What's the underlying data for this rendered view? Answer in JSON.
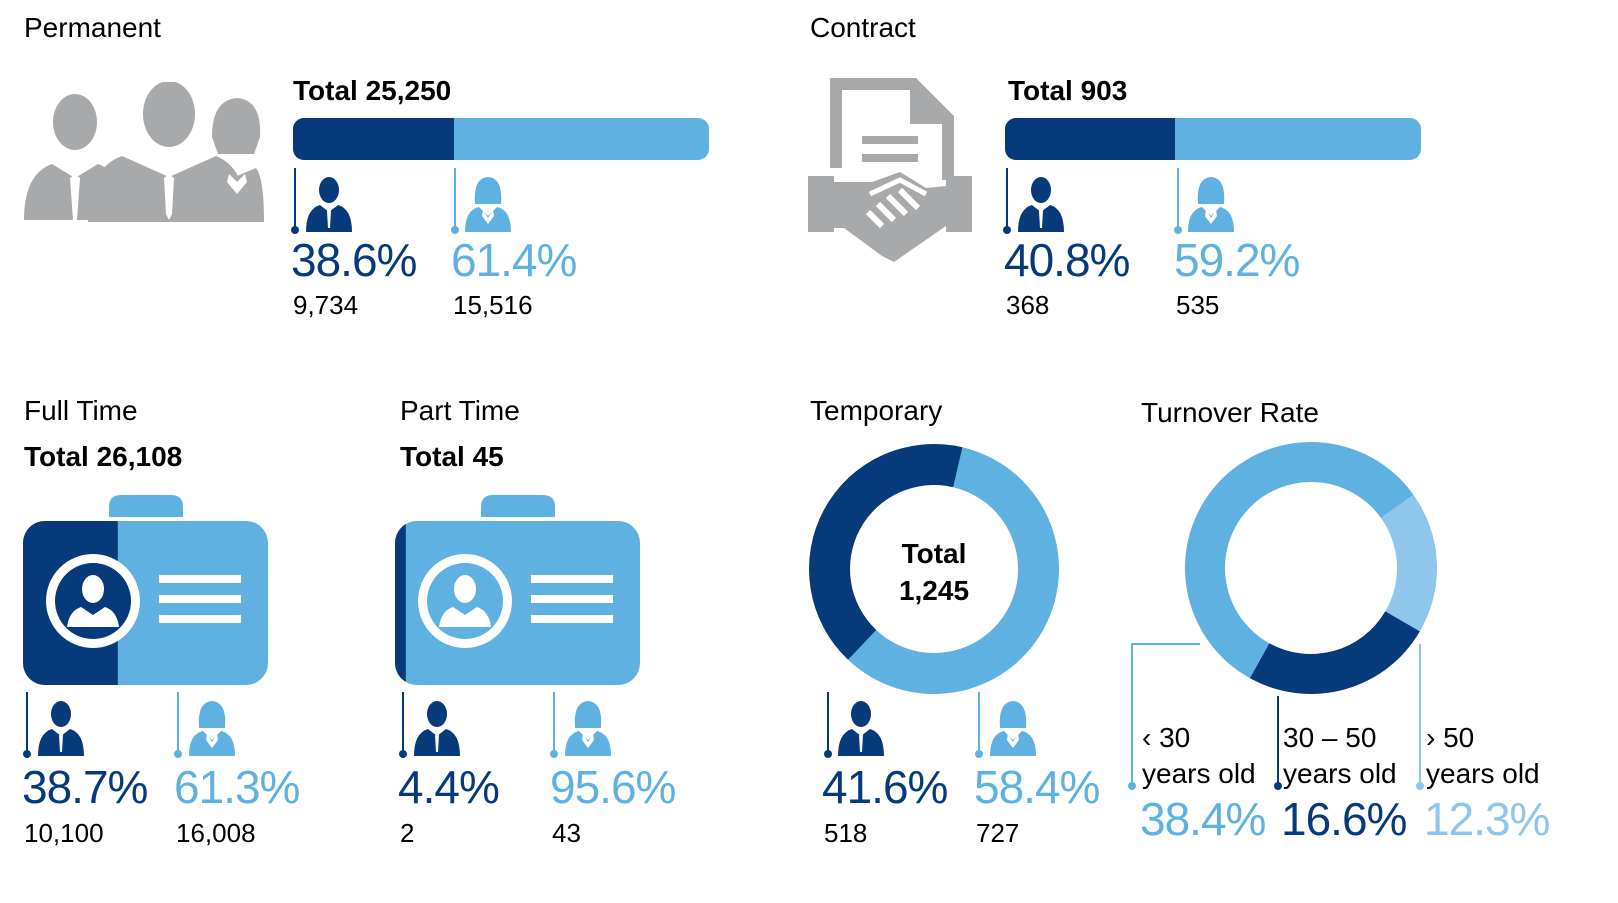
{
  "colors": {
    "dark": "#063a7a",
    "light": "#5fb1e2",
    "lighter": "#8fc6eb",
    "gray": "#a7a9ab"
  },
  "permanent": {
    "title": "Permanent",
    "total_label": "Total 25,250",
    "male": {
      "pct": "38.6%",
      "count": "9,734",
      "share": 0.386
    },
    "female": {
      "pct": "61.4%",
      "count": "15,516",
      "share": 0.614
    }
  },
  "contract": {
    "title": "Contract",
    "total_label": "Total 903",
    "male": {
      "pct": "40.8%",
      "count": "368",
      "share": 0.408
    },
    "female": {
      "pct": "59.2%",
      "count": "535",
      "share": 0.592
    }
  },
  "full_time": {
    "title": "Full Time",
    "total_label": "Total 26,108",
    "male": {
      "pct": "38.7%",
      "count": "10,100",
      "share": 0.387
    },
    "female": {
      "pct": "61.3%",
      "count": "16,008",
      "share": 0.613
    }
  },
  "part_time": {
    "title": "Part Time",
    "total_label": "Total 45",
    "male": {
      "pct": "4.4%",
      "count": "2",
      "share": 0.044
    },
    "female": {
      "pct": "95.6%",
      "count": "43",
      "share": 0.956
    }
  },
  "temporary": {
    "title": "Temporary",
    "total_line1": "Total",
    "total_line2": "1,245",
    "male": {
      "pct": "41.6%",
      "count": "518",
      "share": 0.416
    },
    "female": {
      "pct": "58.4%",
      "count": "727",
      "share": 0.584
    }
  },
  "turnover": {
    "title": "Turnover Rate",
    "groups": [
      {
        "line1": "‹ 30",
        "line2": "years old",
        "pct": "38.4%",
        "value": 38.4
      },
      {
        "line1": "30 – 50",
        "line2": "years old",
        "pct": "16.6%",
        "value": 16.6
      },
      {
        "line1": "› 50",
        "line2": "years old",
        "pct": "12.3%",
        "value": 12.3
      }
    ]
  },
  "chart_data": [
    {
      "type": "bar",
      "title": "Permanent",
      "categories": [
        "Male",
        "Female"
      ],
      "values": [
        9734,
        15516
      ],
      "percent": [
        38.6,
        61.4
      ],
      "total": 25250
    },
    {
      "type": "bar",
      "title": "Contract",
      "categories": [
        "Male",
        "Female"
      ],
      "values": [
        368,
        535
      ],
      "percent": [
        40.8,
        59.2
      ],
      "total": 903
    },
    {
      "type": "bar",
      "title": "Full Time",
      "categories": [
        "Male",
        "Female"
      ],
      "values": [
        10100,
        16008
      ],
      "percent": [
        38.7,
        61.3
      ],
      "total": 26108
    },
    {
      "type": "bar",
      "title": "Part Time",
      "categories": [
        "Male",
        "Female"
      ],
      "values": [
        2,
        43
      ],
      "percent": [
        4.4,
        95.6
      ],
      "total": 45
    },
    {
      "type": "pie",
      "title": "Temporary",
      "categories": [
        "Male",
        "Female"
      ],
      "values": [
        518,
        727
      ],
      "percent": [
        41.6,
        58.4
      ],
      "total": 1245
    },
    {
      "type": "pie",
      "title": "Turnover Rate",
      "categories": [
        "‹ 30 years old",
        "30 – 50 years old",
        "› 50 years old"
      ],
      "values": [
        38.4,
        16.6,
        12.3
      ]
    }
  ]
}
